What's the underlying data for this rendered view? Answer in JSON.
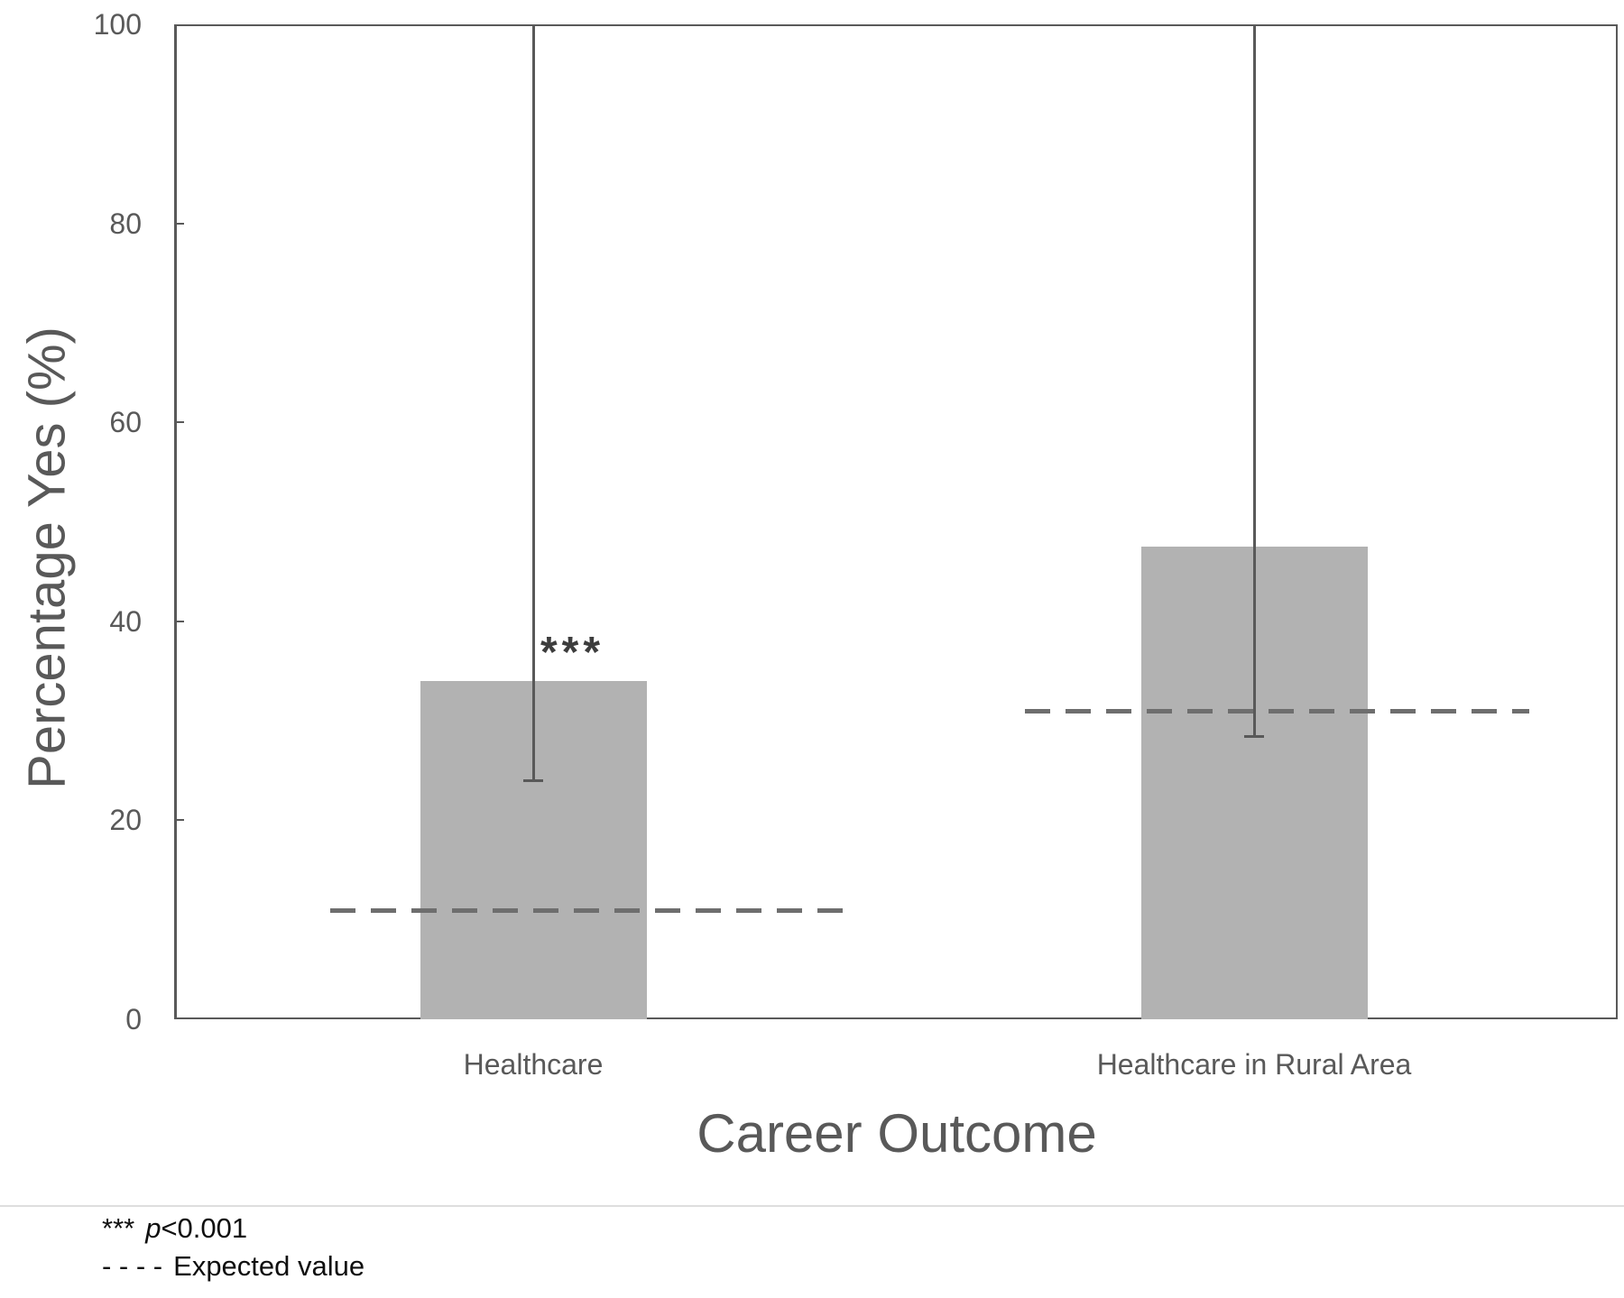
{
  "chart_data": {
    "type": "bar",
    "title": "",
    "xlabel": "Career Outcome",
    "ylabel": "Percentage Yes (%)",
    "ylim": [
      0,
      100
    ],
    "yticks": [
      0,
      20,
      40,
      60,
      80,
      100
    ],
    "categories": [
      "Healthcare",
      "Healthcare in Rural Area"
    ],
    "values": [
      34,
      47.5
    ],
    "error_bars": {
      "low": [
        24,
        28.5
      ],
      "high": [
        100,
        100
      ]
    },
    "expected_values": [
      11,
      31
    ],
    "significance": [
      {
        "category_index": 0,
        "label": "***"
      }
    ],
    "legend_position": "none",
    "grid": false,
    "colors": {
      "bar_fill": "#b2b2b2",
      "error_bar": "#595959",
      "expected_line": "#6e6e6e",
      "axis": "#595959",
      "tick_text": "#595959",
      "footnote_text": "#0f0f0f"
    }
  },
  "footer": {
    "sig_prefix": "***",
    "sig_p": "p",
    "sig_rest": "<0.001",
    "expected_dashes": "- - - -",
    "expected_label": "Expected value"
  }
}
